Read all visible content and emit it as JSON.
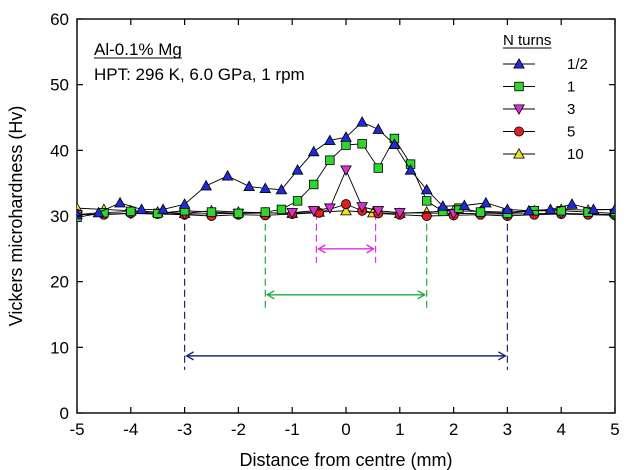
{
  "chart_data": {
    "type": "line",
    "xlabel": "Distance from centre (mm)",
    "ylabel": "Vickers microhardness (Hv)",
    "xlim": [
      -5,
      5
    ],
    "ylim": [
      0,
      60
    ],
    "xticks": [
      -5,
      -4,
      -3,
      -2,
      -1,
      0,
      1,
      2,
      3,
      4,
      5
    ],
    "yticks": [
      0,
      10,
      20,
      30,
      40,
      50,
      60
    ],
    "grid": false,
    "annotations": {
      "material": "Al-0.1% Mg",
      "conditions": "HPT: 296 K, 6.0 GPa, 1 rpm"
    },
    "legend": {
      "title": "N turns",
      "position": "top-right"
    },
    "series": [
      {
        "name": "1/2",
        "marker": "triangle-up",
        "color": "#1f2bd6",
        "x": [
          -5,
          -4.6,
          -4.2,
          -3.8,
          -3.4,
          -3.0,
          -2.6,
          -2.2,
          -1.8,
          -1.5,
          -1.2,
          -0.9,
          -0.6,
          -0.3,
          0.0,
          0.3,
          0.6,
          0.9,
          1.2,
          1.5,
          1.8,
          2.2,
          2.6,
          3.0,
          3.4,
          3.8,
          4.2,
          4.6,
          5.0
        ],
        "y": [
          30.2,
          30.5,
          32.0,
          31.0,
          31.0,
          31.8,
          34.6,
          36.1,
          34.5,
          34.2,
          34.0,
          37.0,
          39.8,
          41.5,
          42.0,
          44.3,
          43.2,
          40.9,
          37.0,
          34.0,
          31.5,
          31.6,
          32.0,
          31.0,
          30.8,
          31.0,
          31.8,
          31.0,
          31.0
        ]
      },
      {
        "name": "1",
        "marker": "square",
        "color": "#2fd62f",
        "x": [
          -5,
          -4.5,
          -4.0,
          -3.5,
          -3.0,
          -2.5,
          -2.0,
          -1.5,
          -1.2,
          -0.9,
          -0.6,
          -0.3,
          0.0,
          0.3,
          0.6,
          0.9,
          1.2,
          1.5,
          1.8,
          2.1,
          2.5,
          3.0,
          3.5,
          4.0,
          4.5,
          5.0
        ],
        "y": [
          29.8,
          30.5,
          30.7,
          30.4,
          30.8,
          30.6,
          30.4,
          30.6,
          31.0,
          32.3,
          34.8,
          38.5,
          40.8,
          41.0,
          37.3,
          41.8,
          37.9,
          32.3,
          30.7,
          31.2,
          30.6,
          30.4,
          30.8,
          30.8,
          30.6,
          30.4
        ]
      },
      {
        "name": "3",
        "marker": "triangle-down",
        "color": "#d62fd6",
        "x": [
          -5,
          -4.0,
          -3.0,
          -2.0,
          -1.0,
          -0.6,
          -0.3,
          0.0,
          0.3,
          0.6,
          1.0,
          2.0,
          3.0,
          4.0,
          5.0
        ],
        "y": [
          30.2,
          30.4,
          30.3,
          30.4,
          30.5,
          30.8,
          31.2,
          37.0,
          31.4,
          30.8,
          30.5,
          30.4,
          30.3,
          30.4,
          30.2
        ]
      },
      {
        "name": "5",
        "marker": "circle",
        "color": "#e02020",
        "x": [
          -5,
          -4.5,
          -4.0,
          -3.5,
          -3.0,
          -2.5,
          -2.0,
          -1.5,
          -1.0,
          -0.5,
          0.0,
          0.3,
          0.6,
          1.0,
          1.5,
          2.0,
          2.5,
          3.0,
          3.5,
          4.0,
          4.5,
          5.0
        ],
        "y": [
          30.3,
          30.2,
          30.4,
          30.3,
          30.2,
          30.0,
          30.2,
          30.1,
          30.3,
          30.5,
          31.8,
          30.8,
          30.4,
          30.2,
          30.0,
          30.1,
          30.2,
          30.0,
          30.2,
          30.3,
          30.2,
          30.1
        ]
      },
      {
        "name": "10",
        "marker": "triangle-up",
        "color": "#f0e020",
        "x": [
          -5,
          -4.5,
          -4.0,
          -3.5,
          -3.0,
          -2.5,
          -2.0,
          -1.5,
          -1.0,
          -0.5,
          0.0,
          0.5,
          1.0,
          1.5,
          2.0,
          2.5,
          3.0,
          3.5,
          4.0,
          4.5,
          5.0
        ],
        "y": [
          31.2,
          31.0,
          30.8,
          30.6,
          30.4,
          30.8,
          30.6,
          30.5,
          30.4,
          30.6,
          30.8,
          30.5,
          30.4,
          30.6,
          30.8,
          30.7,
          30.6,
          30.8,
          31.0,
          30.9,
          31.0
        ]
      }
    ],
    "ranges": [
      {
        "color": "#1a2a7a",
        "from": -3.0,
        "to": 3.0,
        "y": 8.7,
        "drop_to": 30.5
      },
      {
        "color": "#1faa3a",
        "from": -1.5,
        "to": 1.5,
        "y": 18.0,
        "drop_to": 30.5
      },
      {
        "color": "#e030e0",
        "from": -0.55,
        "to": 0.55,
        "y": 25.0,
        "drop_to": 30.5
      }
    ]
  }
}
